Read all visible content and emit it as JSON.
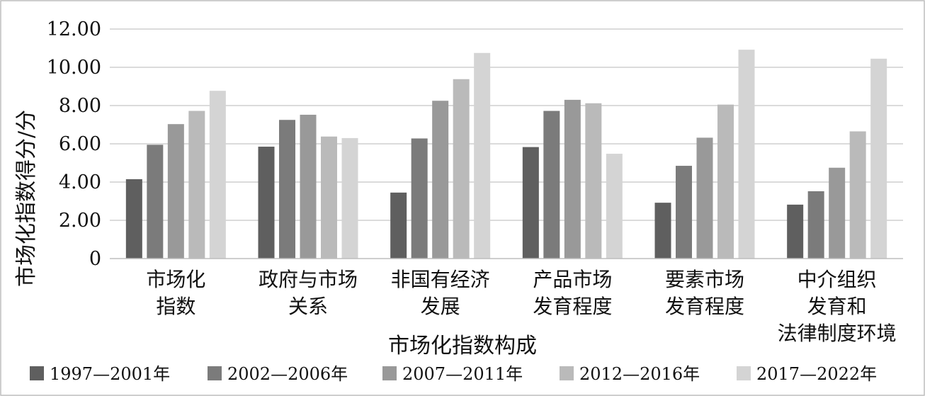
{
  "chart_data": {
    "type": "bar",
    "categories": [
      [
        "市场化",
        "指数"
      ],
      [
        "政府与市场",
        "关系"
      ],
      [
        "非国有经济",
        "发展"
      ],
      [
        "产品市场",
        "发育程度"
      ],
      [
        "要素市场",
        "发育程度"
      ],
      [
        "中介组织",
        "发育和",
        "法律制度环境"
      ]
    ],
    "series": [
      {
        "name": "1997—2001年",
        "color": "#5f5f5f",
        "values": [
          4.15,
          5.85,
          3.45,
          5.83,
          2.92,
          2.82
        ]
      },
      {
        "name": "2002—2006年",
        "color": "#7b7b7b",
        "values": [
          5.95,
          7.25,
          6.28,
          7.72,
          4.85,
          3.52
        ]
      },
      {
        "name": "2007—2011年",
        "color": "#999999",
        "values": [
          7.03,
          7.52,
          8.25,
          8.3,
          6.32,
          4.75
        ]
      },
      {
        "name": "2012—2016年",
        "color": "#bababa",
        "values": [
          7.72,
          6.38,
          9.38,
          8.12,
          8.05,
          6.65
        ]
      },
      {
        "name": "2017—2022年",
        "color": "#d4d4d4",
        "values": [
          8.77,
          6.3,
          10.75,
          5.48,
          10.92,
          10.45
        ]
      }
    ],
    "yticks": [
      "0",
      "2.00",
      "4.00",
      "6.00",
      "8.00",
      "10.00",
      "12.00"
    ],
    "ylim": [
      0,
      12
    ],
    "ylabel": "市场化指数得分/分",
    "xlabel": "市场化指数构成",
    "legend_position": "bottom",
    "grid": true
  }
}
